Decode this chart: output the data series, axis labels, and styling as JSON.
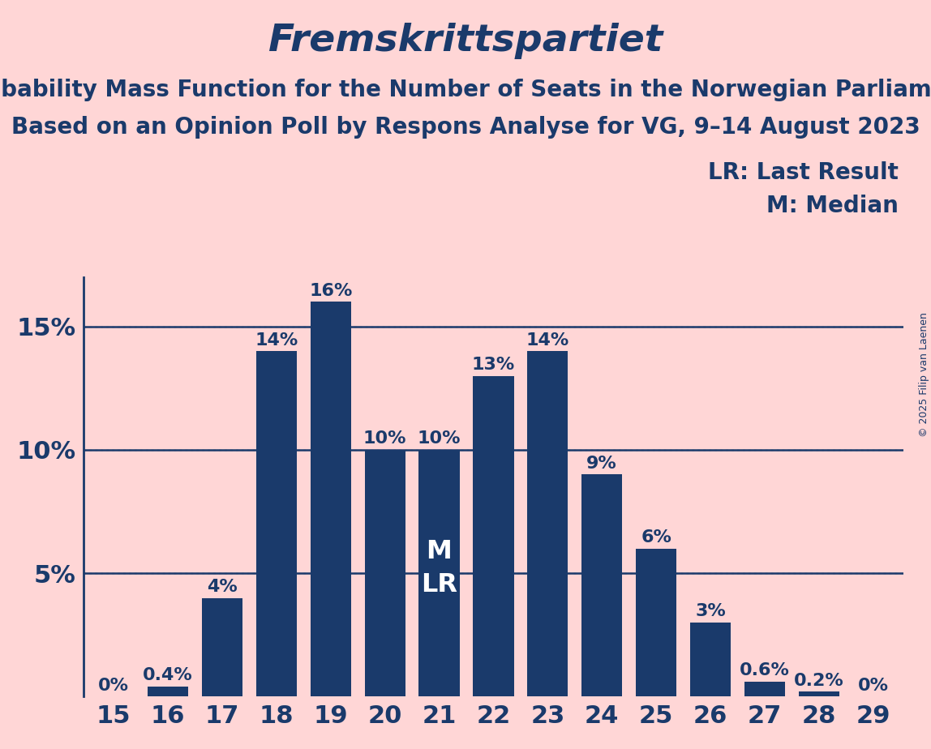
{
  "title": "Fremskrittspartiet",
  "subtitle1": "Probability Mass Function for the Number of Seats in the Norwegian Parliament",
  "subtitle2": "Based on an Opinion Poll by Respons Analyse for VG, 9–14 August 2023",
  "copyright": "© 2025 Filip van Laenen",
  "legend_lr": "LR: Last Result",
  "legend_m": "M: Median",
  "categories": [
    15,
    16,
    17,
    18,
    19,
    20,
    21,
    22,
    23,
    24,
    25,
    26,
    27,
    28,
    29
  ],
  "values": [
    0.0,
    0.4,
    4.0,
    14.0,
    16.0,
    10.0,
    10.0,
    13.0,
    14.0,
    9.0,
    6.0,
    3.0,
    0.6,
    0.2,
    0.0
  ],
  "labels": [
    "0%",
    "0.4%",
    "4%",
    "14%",
    "16%",
    "10%",
    "10%",
    "13%",
    "14%",
    "9%",
    "6%",
    "3%",
    "0.6%",
    "0.2%",
    "0%"
  ],
  "bar_color": "#1a3a6b",
  "background_color": "#ffd6d6",
  "text_color": "#1a3a6b",
  "median_seat": 21,
  "last_result_seat": 21,
  "ylim": [
    0,
    17
  ],
  "title_fontsize": 34,
  "subtitle_fontsize": 20,
  "axis_label_fontsize": 22,
  "bar_label_fontsize": 16,
  "legend_fontsize": 20,
  "copyright_fontsize": 9
}
